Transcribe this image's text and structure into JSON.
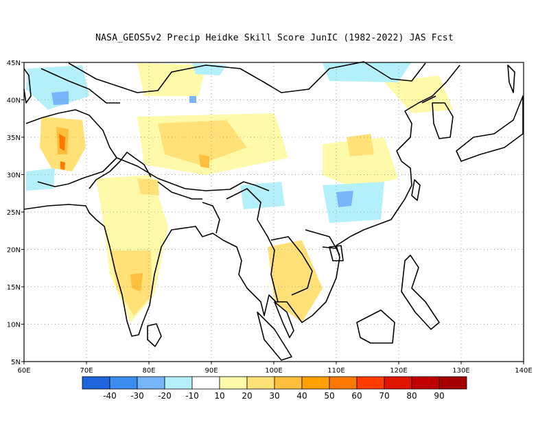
{
  "title": "NASA_GEOS5v2 Precip Heidke Skill Score JunIC (1982-2022) JAS Fcst",
  "map": {
    "lon_range": [
      60,
      140
    ],
    "lat_range": [
      5,
      45
    ],
    "lon_ticks": [
      "60E",
      "70E",
      "80E",
      "90E",
      "100E",
      "110E",
      "120E",
      "130E",
      "140E"
    ],
    "lat_ticks": [
      "45N",
      "40N",
      "35N",
      "30N",
      "25N",
      "20N",
      "15N",
      "10N",
      "5N"
    ],
    "gridlines": "dotted"
  },
  "colorbar": {
    "colors": [
      "#1e64dc",
      "#3c8cf0",
      "#78b4f8",
      "#b4f0fa",
      "#ffffff",
      "#fffaaa",
      "#ffe178",
      "#ffbe3c",
      "#ffa000",
      "#ff7800",
      "#ff3c00",
      "#e11400",
      "#c00000",
      "#a50000"
    ],
    "labels": [
      "-40",
      "-30",
      "-20",
      "-10",
      "10",
      "20",
      "30",
      "40",
      "50",
      "60",
      "70",
      "80",
      "90"
    ]
  }
}
